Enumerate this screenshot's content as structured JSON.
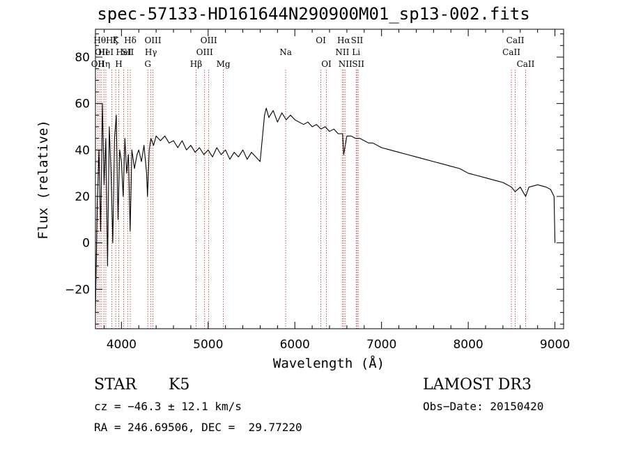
{
  "chart_data": {
    "type": "line",
    "title": "spec-57133-HD161644N290900M01_sp13-002.fits",
    "xlabel": "Wavelength (Å)",
    "ylabel": "Flux (relative)",
    "xlim": [
      3700,
      9100
    ],
    "ylim": [
      -37,
      92
    ],
    "xticks": [
      4000,
      5000,
      6000,
      7000,
      8000,
      9000
    ],
    "xtick_labels": [
      "4000",
      "5000",
      "6000",
      "7000",
      "8000",
      "9000"
    ],
    "yticks": [
      -20,
      0,
      20,
      40,
      60,
      80
    ],
    "ytick_labels": [
      "−20",
      "0",
      "20",
      "40",
      "60",
      "80"
    ],
    "series": [
      {
        "name": "spectrum",
        "x": [
          3700,
          3720,
          3740,
          3760,
          3780,
          3800,
          3820,
          3840,
          3860,
          3880,
          3900,
          3920,
          3940,
          3960,
          3980,
          4000,
          4020,
          4040,
          4060,
          4080,
          4100,
          4120,
          4150,
          4180,
          4200,
          4230,
          4260,
          4290,
          4300,
          4320,
          4340,
          4370,
          4400,
          4450,
          4500,
          4550,
          4600,
          4650,
          4700,
          4750,
          4800,
          4850,
          4900,
          4950,
          5000,
          5050,
          5100,
          5150,
          5200,
          5250,
          5300,
          5350,
          5400,
          5450,
          5500,
          5550,
          5600,
          5650,
          5670,
          5700,
          5750,
          5800,
          5850,
          5900,
          5950,
          6000,
          6050,
          6100,
          6150,
          6200,
          6250,
          6300,
          6350,
          6400,
          6450,
          6500,
          6550,
          6563,
          6600,
          6650,
          6700,
          6750,
          6800,
          6850,
          6900,
          7000,
          7100,
          7200,
          7300,
          7400,
          7500,
          7600,
          7700,
          7800,
          7900,
          8000,
          8100,
          8200,
          8300,
          8400,
          8500,
          8540,
          8600,
          8662,
          8700,
          8800,
          8900,
          8950,
          8990,
          9000
        ],
        "y": [
          -30,
          15,
          40,
          5,
          60,
          25,
          45,
          -10,
          50,
          30,
          0,
          45,
          55,
          10,
          40,
          35,
          20,
          45,
          30,
          38,
          5,
          40,
          32,
          38,
          40,
          35,
          42,
          30,
          20,
          40,
          45,
          42,
          46,
          44,
          46,
          43,
          44,
          41,
          44,
          40,
          42,
          39,
          41,
          38,
          40,
          37,
          41,
          38,
          40,
          36,
          39,
          37,
          40,
          36,
          39,
          37,
          35,
          55,
          58,
          54,
          57,
          52,
          56,
          53,
          55,
          53,
          52,
          51,
          52,
          50,
          51,
          49,
          50,
          48,
          49,
          47,
          47,
          38,
          46,
          46,
          45,
          45,
          44,
          43,
          43,
          41,
          40,
          39,
          38,
          37,
          36,
          35,
          34,
          33,
          32,
          30,
          29,
          28,
          27,
          26,
          24,
          22,
          24,
          20,
          24,
          25,
          24,
          23,
          20,
          0
        ]
      }
    ],
    "lines": [
      {
        "wave": 3727,
        "label": "OII",
        "row": 2
      },
      {
        "wave": 3750,
        "label": "Hθ",
        "row": 0
      },
      {
        "wave": 3771,
        "label": "OII",
        "row": 1
      },
      {
        "wave": 3798,
        "label": "Hη",
        "row": 2
      },
      {
        "wave": 3820,
        "label": "HeI",
        "row": 1
      },
      {
        "wave": 3889,
        "label": "Hζ",
        "row": 0
      },
      {
        "wave": 3934,
        "label": "K",
        "row": 0
      },
      {
        "wave": 3969,
        "label": "H",
        "row": 2
      },
      {
        "wave": 4026,
        "label": "HeI",
        "row": 1
      },
      {
        "wave": 4072,
        "label": "SII",
        "row": 1
      },
      {
        "wave": 4102,
        "label": "Hδ",
        "row": 0
      },
      {
        "wave": 4304,
        "label": "G",
        "row": 2
      },
      {
        "wave": 4340,
        "label": "Hγ",
        "row": 1
      },
      {
        "wave": 4363,
        "label": "OIII",
        "row": 0
      },
      {
        "wave": 4861,
        "label": "Hβ",
        "row": 2
      },
      {
        "wave": 4959,
        "label": "OIII",
        "row": 1
      },
      {
        "wave": 5007,
        "label": "OIII",
        "row": 0
      },
      {
        "wave": 5175,
        "label": "Mg",
        "row": 2
      },
      {
        "wave": 5894,
        "label": "Na",
        "row": 1
      },
      {
        "wave": 6300,
        "label": "OI",
        "row": 0
      },
      {
        "wave": 6364,
        "label": "OI",
        "row": 2
      },
      {
        "wave": 6548,
        "label": "NII",
        "row": 1
      },
      {
        "wave": 6563,
        "label": "Hα",
        "row": 0
      },
      {
        "wave": 6583,
        "label": "NII",
        "row": 2
      },
      {
        "wave": 6707,
        "label": "Li",
        "row": 1
      },
      {
        "wave": 6717,
        "label": "SII",
        "row": 0
      },
      {
        "wave": 6731,
        "label": "SII",
        "row": 2
      },
      {
        "wave": 8498,
        "label": "CaII",
        "row": 1
      },
      {
        "wave": 8542,
        "label": "CaII",
        "row": 0
      },
      {
        "wave": 8662,
        "label": "CaII",
        "row": 2
      }
    ]
  },
  "info": {
    "class": "STAR",
    "subclass": "K5",
    "survey": "LAMOST DR3",
    "cz": "cz = −46.3 ± 12.1 km/s",
    "obs_date": "Obs−Date: 20150420",
    "radec": "RA = 246.69506, DEC =  29.77220"
  }
}
